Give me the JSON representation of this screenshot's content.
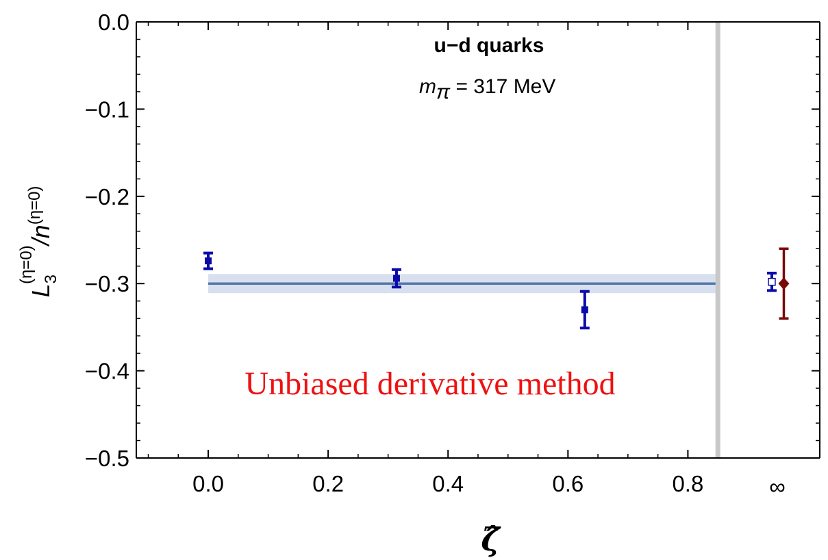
{
  "chart_data": {
    "type": "scatter",
    "xlabel": "ζ̂",
    "ylabel": {
      "main": "L",
      "main_sub": "3",
      "main_sup": "(η=0)",
      "slash": "/",
      "denom": "n",
      "denom_sup": "(η=0)"
    },
    "xlim": [
      -0.12,
      1.02
    ],
    "ylim": [
      -0.5,
      0.0
    ],
    "x_ticks": [
      0.0,
      0.2,
      0.4,
      0.6,
      0.8
    ],
    "x_tick_labels": [
      "0.0",
      "0.2",
      "0.4",
      "0.6",
      "0.8"
    ],
    "y_ticks": [
      0.0,
      -0.1,
      -0.2,
      -0.3,
      -0.4,
      -0.5
    ],
    "y_tick_labels": [
      "0.0",
      "−0.1",
      "−0.2",
      "−0.3",
      "−0.4",
      "−0.5"
    ],
    "infinity_label": "∞",
    "grid": false,
    "series": [
      {
        "marker": "filled-square",
        "color": "#0a0aa8",
        "points": [
          {
            "x": 0.0,
            "y": -0.274,
            "err": 0.009
          },
          {
            "x": 0.314,
            "y": -0.294,
            "err": 0.01
          },
          {
            "x": 0.628,
            "y": -0.33,
            "err": 0.021
          }
        ]
      },
      {
        "marker": "open-square",
        "color": "#0a0aa8",
        "points": [
          {
            "x": 0.94,
            "y": -0.298,
            "err": 0.01
          }
        ]
      },
      {
        "marker": "diamond",
        "color": "#7a0a0a",
        "points": [
          {
            "x": 0.96,
            "y": -0.3,
            "err": 0.04
          }
        ]
      }
    ],
    "fit_band": {
      "x_range": [
        0.0,
        0.85
      ],
      "center": -0.3,
      "half_width": 0.011,
      "line_color": "#5577aa",
      "band_color": "#d8e0ef"
    },
    "separator_x": 0.85,
    "separator_color": "#c8c8c8",
    "annotations": {
      "title": "u−d quarks",
      "mass_symbol": "m",
      "mass_sub": "π",
      "mass_value": " = 317 MeV",
      "method": "Unbiased derivative method",
      "method_color": "#ee1111"
    }
  }
}
